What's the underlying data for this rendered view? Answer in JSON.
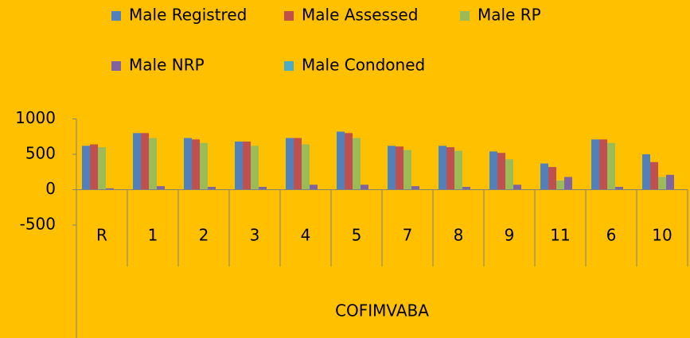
{
  "chart_data": {
    "type": "bar",
    "categories": [
      "R",
      "1",
      "2",
      "3",
      "4",
      "5",
      "7",
      "8",
      "9",
      "11",
      "6",
      "10"
    ],
    "group_label": "COFIMVABA",
    "series": [
      {
        "name": "Male Registred",
        "color": "#4f81bd",
        "values": [
          620,
          800,
          730,
          680,
          730,
          820,
          620,
          620,
          540,
          370,
          710,
          500
        ]
      },
      {
        "name": "Male Assessed",
        "color": "#c0504d",
        "values": [
          640,
          800,
          710,
          680,
          730,
          800,
          610,
          600,
          520,
          320,
          710,
          390
        ]
      },
      {
        "name": "Male RP",
        "color": "#9bbb59",
        "values": [
          600,
          730,
          660,
          620,
          640,
          730,
          560,
          550,
          430,
          130,
          660,
          180
        ]
      },
      {
        "name": "Male NRP",
        "color": "#8064a2",
        "values": [
          20,
          50,
          40,
          40,
          70,
          70,
          50,
          40,
          70,
          180,
          40,
          210
        ]
      },
      {
        "name": "Male Condoned",
        "color": "#4bacc6",
        "values": [
          0,
          0,
          0,
          0,
          0,
          0,
          0,
          0,
          0,
          0,
          0,
          0
        ]
      }
    ],
    "ylim": [
      -500,
      1000
    ],
    "yticks": [
      -500,
      0,
      500,
      1000
    ],
    "legend": "top",
    "grid": false
  }
}
